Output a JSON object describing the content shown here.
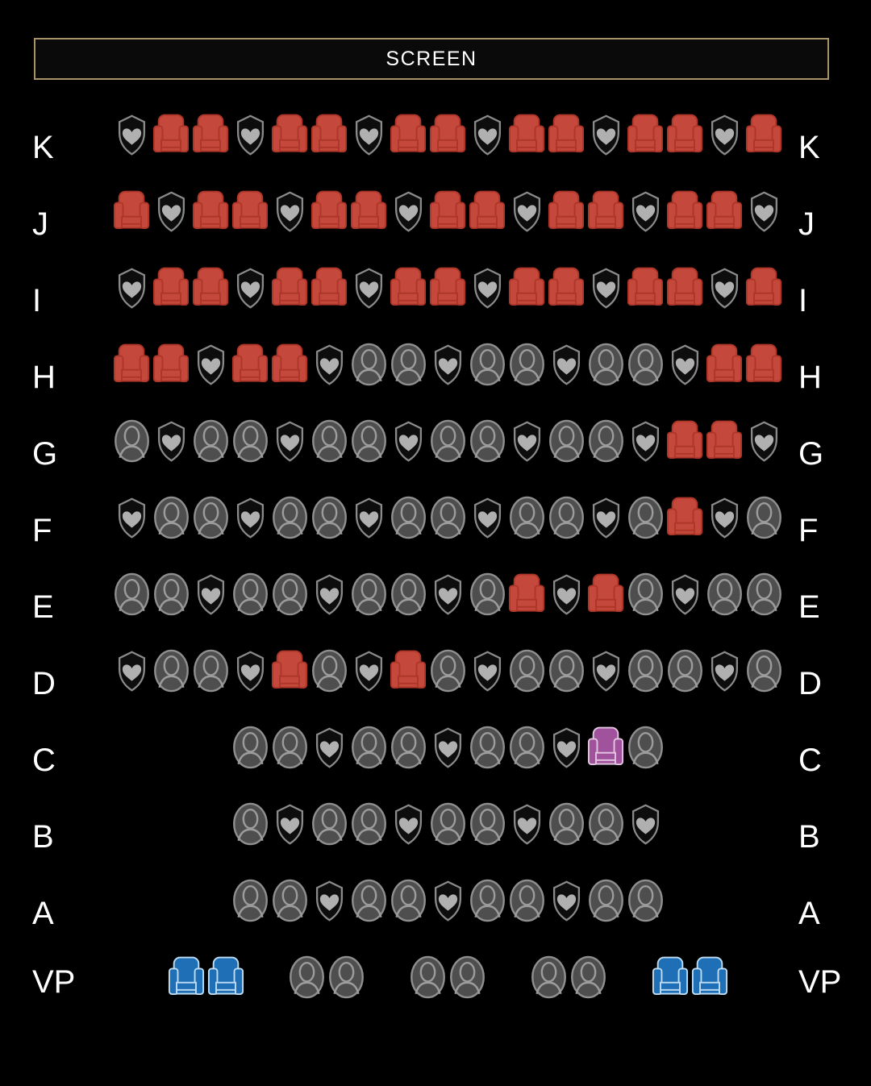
{
  "screen_label": "SCREEN",
  "colors": {
    "background": "#000000",
    "screen_border": "#A79367",
    "screen_fill": "#0A0A0A",
    "screen_text": "#FFFFFF",
    "row_label_text": "#FFFFFF",
    "seat_available_fill": "#C4483B",
    "seat_available_stroke": "#AD3629",
    "seat_selected_fill": "#A1529C",
    "seat_selected_stroke": "#E3C6E1",
    "seat_accessible_fill": "#1E6FB5",
    "seat_accessible_stroke": "#BFDCF2",
    "seat_occupied_fill": "#4E4E4E",
    "seat_occupied_stroke": "#8F8F8F",
    "seat_occupied_figure_stroke": "#9C9C9C",
    "shield_stroke": "#8A8A8A",
    "shield_fill": "#0D0D0D",
    "shield_heart_fill": "#B0B0B0"
  },
  "seat_type_meaning": {
    "open": "available-seat",
    "taken": "occupied-seat",
    "shield": "distancing-shield",
    "selected": "selected-seat",
    "access": "accessible-seat",
    "gap": "aisle-gap"
  },
  "rows": [
    {
      "label": "K",
      "seats": [
        "shield",
        "open",
        "open",
        "shield",
        "open",
        "open",
        "shield",
        "open",
        "open",
        "shield",
        "open",
        "open",
        "shield",
        "open",
        "open",
        "shield",
        "open"
      ]
    },
    {
      "label": "J",
      "seats": [
        "open",
        "shield",
        "open",
        "open",
        "shield",
        "open",
        "open",
        "shield",
        "open",
        "open",
        "shield",
        "open",
        "open",
        "shield",
        "open",
        "open",
        "shield"
      ]
    },
    {
      "label": "I",
      "seats": [
        "shield",
        "open",
        "open",
        "shield",
        "open",
        "open",
        "shield",
        "open",
        "open",
        "shield",
        "open",
        "open",
        "shield",
        "open",
        "open",
        "shield",
        "open"
      ]
    },
    {
      "label": "H",
      "seats": [
        "open",
        "open",
        "shield",
        "open",
        "open",
        "shield",
        "taken",
        "taken",
        "shield",
        "taken",
        "taken",
        "shield",
        "taken",
        "taken",
        "shield",
        "open",
        "open"
      ]
    },
    {
      "label": "G",
      "seats": [
        "taken",
        "shield",
        "taken",
        "taken",
        "shield",
        "taken",
        "taken",
        "shield",
        "taken",
        "taken",
        "shield",
        "taken",
        "taken",
        "shield",
        "open",
        "open",
        "shield"
      ]
    },
    {
      "label": "F",
      "seats": [
        "shield",
        "taken",
        "taken",
        "shield",
        "taken",
        "taken",
        "shield",
        "taken",
        "taken",
        "shield",
        "taken",
        "taken",
        "shield",
        "taken",
        "open",
        "shield",
        "taken"
      ]
    },
    {
      "label": "E",
      "seats": [
        "taken",
        "taken",
        "shield",
        "taken",
        "taken",
        "shield",
        "taken",
        "taken",
        "shield",
        "taken",
        "open",
        "shield",
        "open",
        "taken",
        "shield",
        "taken",
        "taken"
      ]
    },
    {
      "label": "D",
      "seats": [
        "shield",
        "taken",
        "taken",
        "shield",
        "open",
        "taken",
        "shield",
        "open",
        "taken",
        "shield",
        "taken",
        "taken",
        "shield",
        "taken",
        "taken",
        "shield",
        "taken"
      ]
    },
    {
      "label": "C",
      "seats": [
        "taken",
        "taken",
        "shield",
        "taken",
        "taken",
        "shield",
        "taken",
        "taken",
        "shield",
        "selected",
        "taken"
      ]
    },
    {
      "label": "B",
      "seats": [
        "taken",
        "shield",
        "taken",
        "taken",
        "shield",
        "taken",
        "taken",
        "shield",
        "taken",
        "taken",
        "shield"
      ]
    },
    {
      "label": "A",
      "seats": [
        "taken",
        "taken",
        "shield",
        "taken",
        "taken",
        "shield",
        "taken",
        "taken",
        "shield",
        "taken",
        "taken"
      ]
    },
    {
      "label": "VP",
      "seats": [
        "access",
        "access",
        "gap",
        "taken",
        "taken",
        "gap",
        "taken",
        "taken",
        "gap",
        "taken",
        "taken",
        "gap",
        "access",
        "access"
      ]
    }
  ]
}
